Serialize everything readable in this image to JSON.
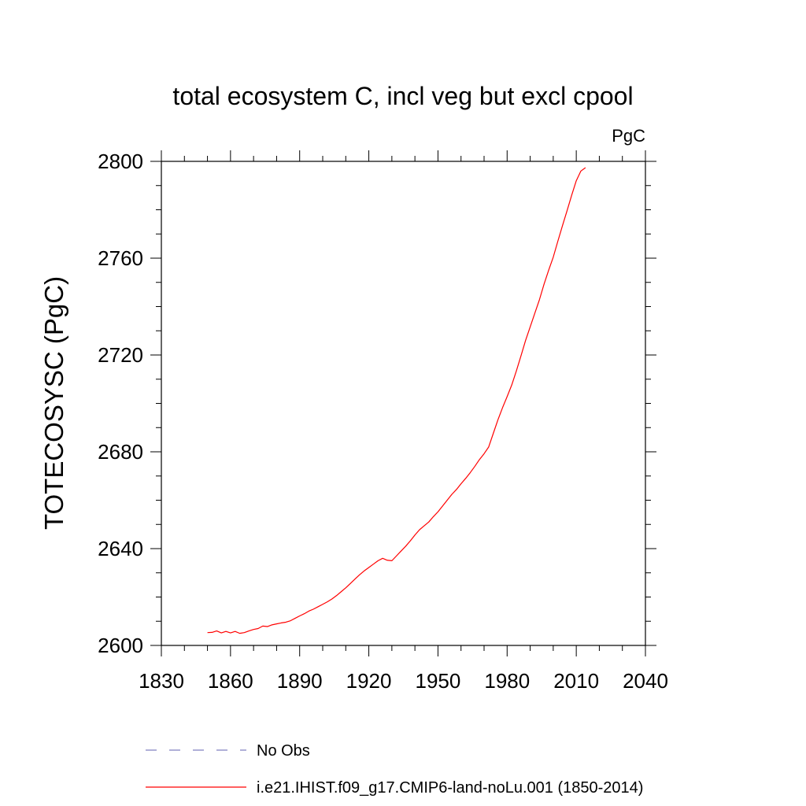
{
  "chart_data": {
    "type": "line",
    "title": "total ecosystem C, incl veg but excl cpool",
    "units": "PgC",
    "xlabel": "",
    "ylabel": "TOTECOSYSC  (PgC)",
    "xlim": [
      1830,
      2040
    ],
    "ylim": [
      2600,
      2800
    ],
    "xticks": [
      1830,
      1860,
      1890,
      1920,
      1950,
      1980,
      2010,
      2040
    ],
    "yticks": [
      2600,
      2640,
      2680,
      2720,
      2760,
      2800
    ],
    "grid": false,
    "legend_position": "bottom",
    "series": [
      {
        "name": "No Obs",
        "color": "#8080c0",
        "style": "dashed",
        "x": [],
        "y": []
      },
      {
        "name": "i.e21.IHIST.f09_g17.CMIP6-land-noLu.001 (1850-2014)",
        "color": "#ff0000",
        "style": "solid",
        "x": [
          1850,
          1852,
          1854,
          1856,
          1858,
          1860,
          1862,
          1864,
          1866,
          1868,
          1870,
          1872,
          1874,
          1876,
          1878,
          1880,
          1882,
          1884,
          1886,
          1888,
          1890,
          1892,
          1894,
          1896,
          1898,
          1900,
          1902,
          1904,
          1906,
          1908,
          1910,
          1912,
          1914,
          1916,
          1918,
          1920,
          1922,
          1924,
          1926,
          1928,
          1930,
          1932,
          1934,
          1936,
          1938,
          1940,
          1942,
          1944,
          1946,
          1948,
          1950,
          1952,
          1954,
          1956,
          1958,
          1960,
          1962,
          1964,
          1966,
          1968,
          1970,
          1972,
          1974,
          1976,
          1978,
          1980,
          1982,
          1984,
          1986,
          1988,
          1990,
          1992,
          1994,
          1996,
          1998,
          2000,
          2002,
          2004,
          2006,
          2008,
          2010,
          2012,
          2014
        ],
        "y": [
          2605.3,
          2605.4,
          2606.0,
          2605.2,
          2605.8,
          2605.2,
          2605.8,
          2605.0,
          2605.3,
          2606.0,
          2606.6,
          2607.0,
          2608.0,
          2607.8,
          2608.5,
          2608.9,
          2609.3,
          2609.6,
          2610.2,
          2611.2,
          2612.2,
          2613.1,
          2614.2,
          2615.0,
          2616.0,
          2617.0,
          2618.0,
          2619.2,
          2620.6,
          2622.2,
          2623.8,
          2625.6,
          2627.4,
          2629.2,
          2630.8,
          2632.2,
          2633.6,
          2635.0,
          2636.0,
          2635.2,
          2635.0,
          2637.0,
          2639.0,
          2641.0,
          2643.2,
          2645.6,
          2647.8,
          2649.4,
          2651.0,
          2653.2,
          2655.2,
          2657.6,
          2660.0,
          2662.4,
          2664.4,
          2666.8,
          2669.0,
          2671.4,
          2674.0,
          2676.8,
          2679.2,
          2682.0,
          2687.6,
          2693.2,
          2698.2,
          2702.8,
          2707.6,
          2713.4,
          2719.6,
          2726.0,
          2731.6,
          2737.2,
          2742.8,
          2749.2,
          2755.0,
          2760.4,
          2767.0,
          2773.4,
          2779.6,
          2786.0,
          2792.0,
          2796.0,
          2797.4
        ]
      }
    ]
  }
}
